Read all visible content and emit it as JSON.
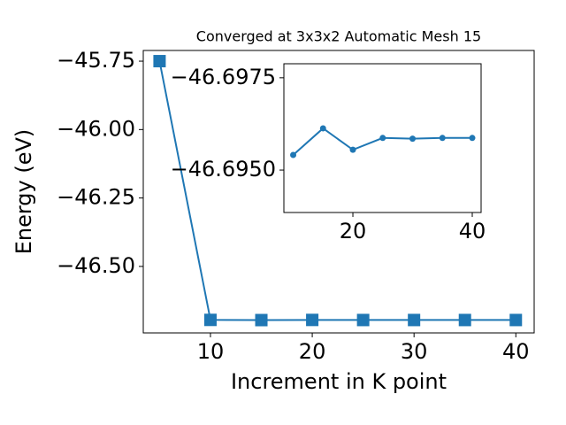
{
  "chart_data": [
    {
      "type": "line",
      "title": "Converged at 3x3x2 Automatic Mesh 15",
      "x_label": "Increment in K point",
      "y_label": "Energy (eV)",
      "x": [
        5,
        10,
        15,
        20,
        25,
        30,
        35,
        40
      ],
      "series": [
        {
          "color": "#1f77b4",
          "marker": "square",
          "values": [
            -45.75,
            -46.69541,
            -46.69613,
            -46.69555,
            -46.69587,
            -46.69585,
            -46.69587,
            -46.69587
          ]
        }
      ],
      "xlim": [
        3.4,
        41.8
      ],
      "xticks": [
        10,
        20,
        30,
        40
      ],
      "ylim": [
        -46.743,
        -45.711
      ],
      "yticks": [
        {
          "value": -45.75,
          "label": "−45.75"
        },
        {
          "value": -46.0,
          "label": "−46.00"
        },
        {
          "value": -46.25,
          "label": "−46.25"
        },
        {
          "value": -46.5,
          "label": "−46.50"
        }
      ]
    },
    {
      "type": "line",
      "x": [
        10,
        15,
        20,
        25,
        30,
        35,
        40
      ],
      "series": [
        {
          "color": "#1f77b4",
          "marker": "circle",
          "values": [
            -46.69541,
            -46.69613,
            -46.69555,
            -46.69587,
            -46.69585,
            -46.69587,
            -46.69587
          ]
        }
      ],
      "xlim": [
        8.44,
        41.48
      ],
      "xticks": [
        20,
        40
      ],
      "ylim": [
        -46.69385,
        -46.69788
      ],
      "yticks": [
        {
          "value": -46.6975,
          "label": "−46.6975"
        },
        {
          "value": -46.695,
          "label": "−46.6950"
        }
      ]
    }
  ]
}
